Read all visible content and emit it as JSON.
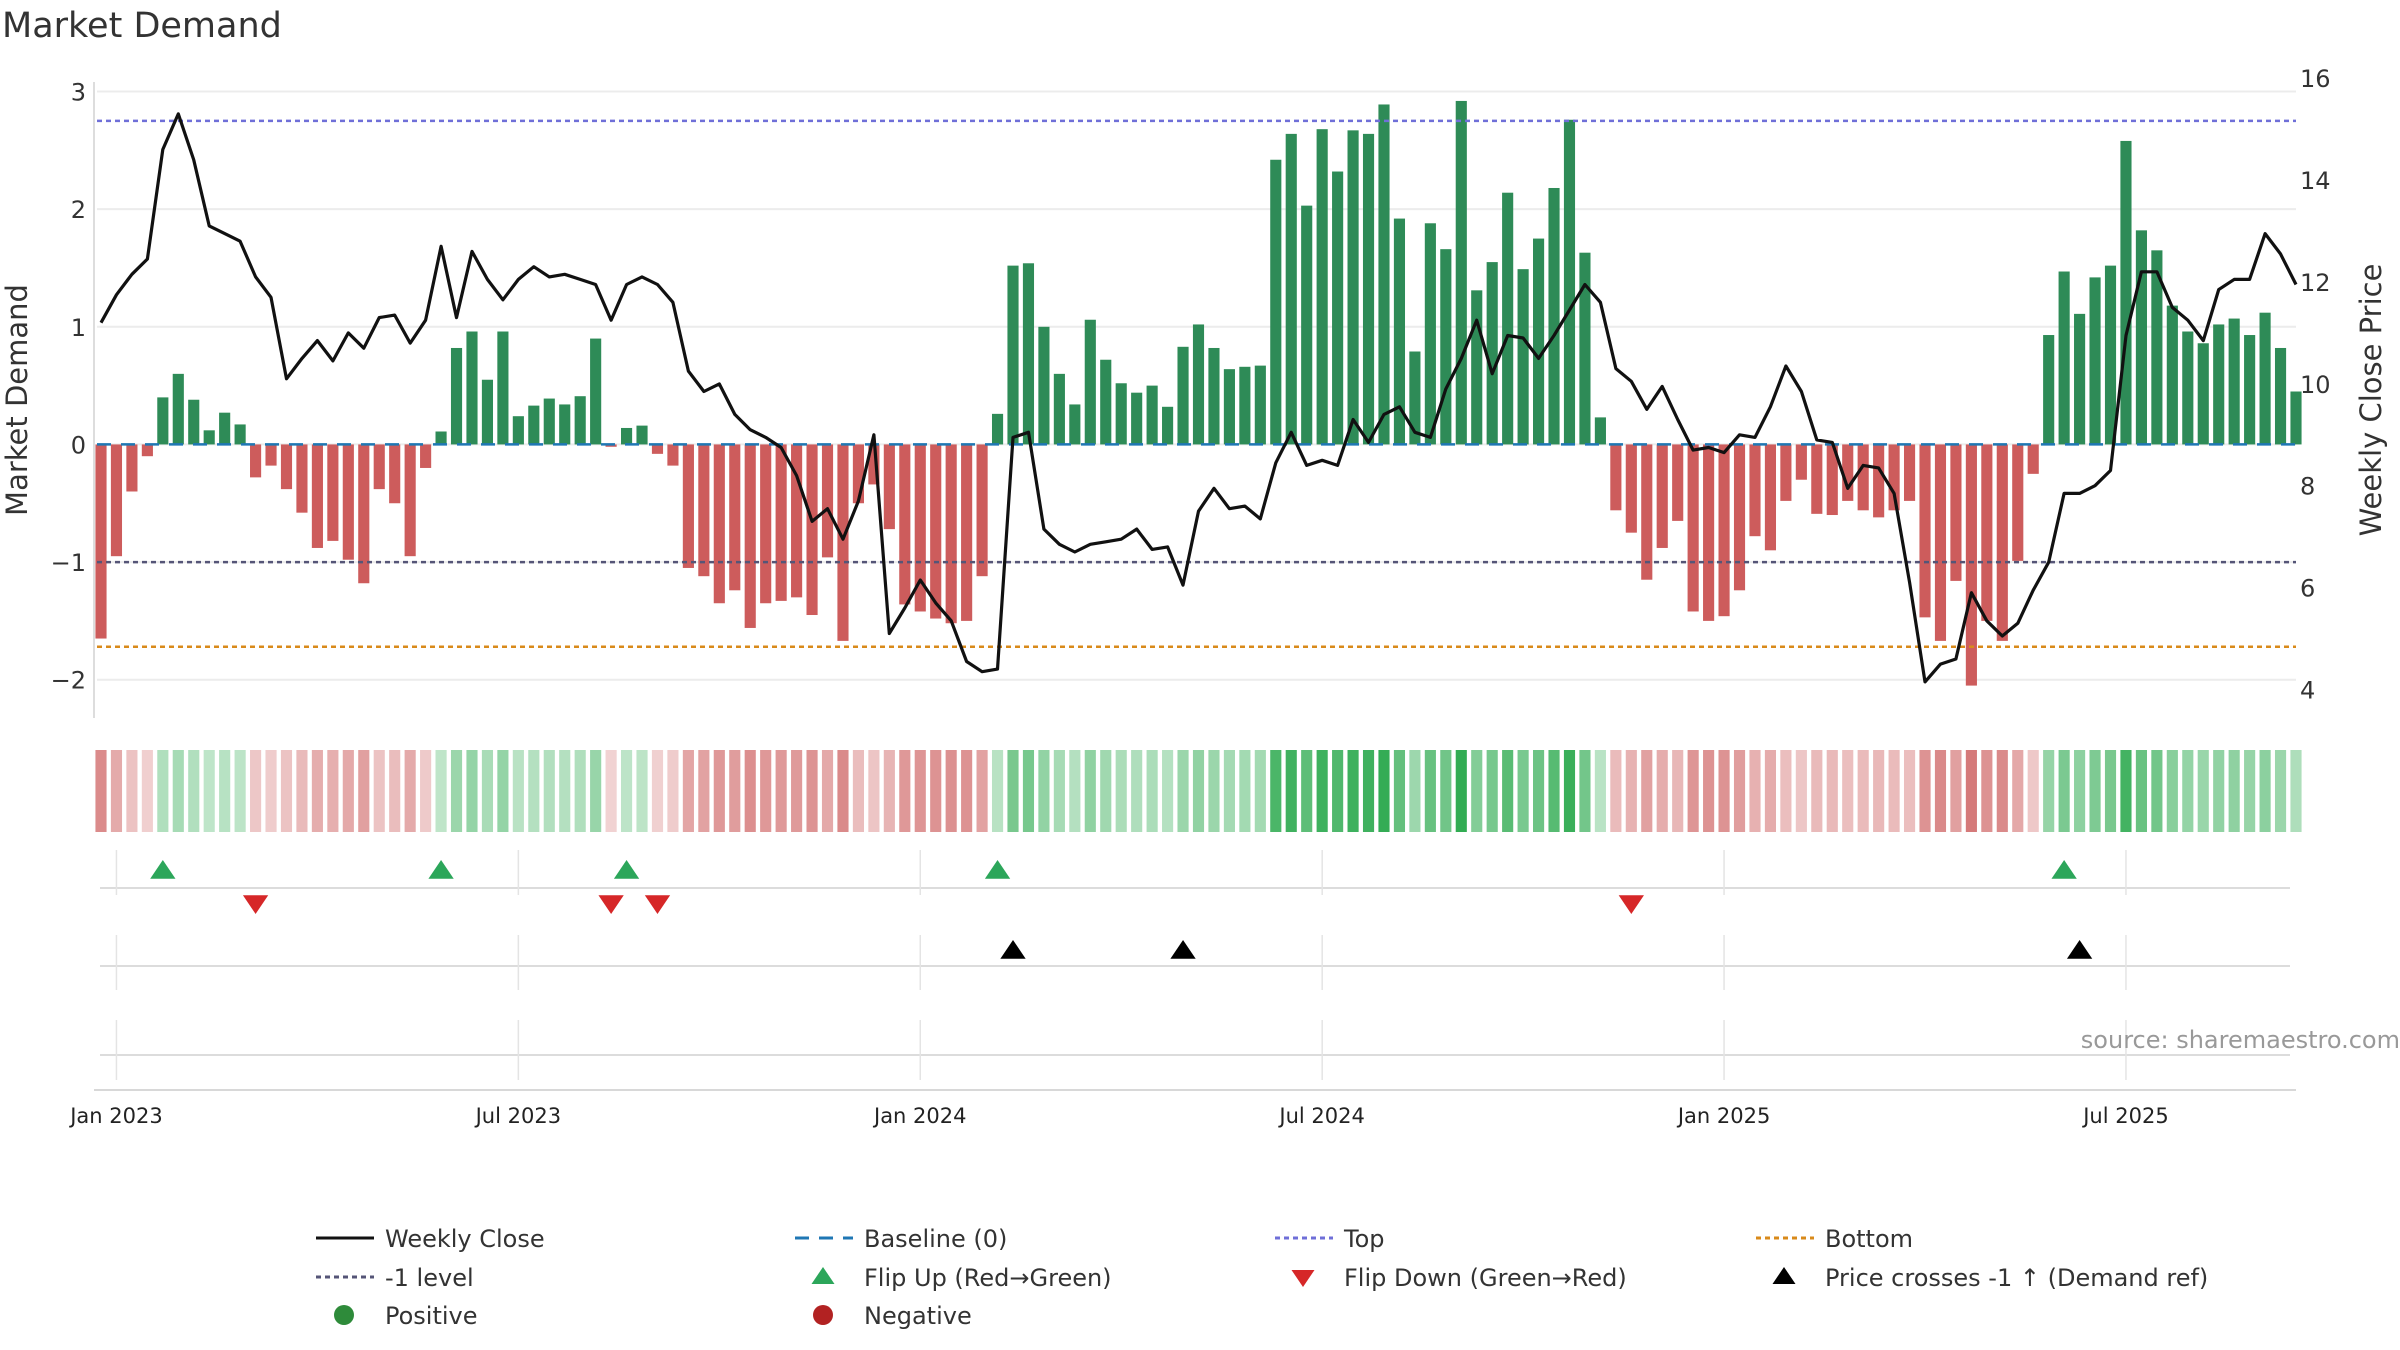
{
  "chart_data": {
    "type": "bar",
    "title": "Market Demand",
    "ylabel_left": "Market Demand",
    "ylabel_right": "Weekly Close Price",
    "ylim_left": [
      -2.3,
      3.2
    ],
    "ylim_right": [
      3.5,
      16.2
    ],
    "yticks_left": [
      -2,
      -1,
      0,
      1,
      2,
      3
    ],
    "yticks_right": [
      4,
      6,
      8,
      10,
      12,
      14,
      16
    ],
    "xticks": [
      {
        "label": "Jan 2023",
        "index": 1
      },
      {
        "label": "Jul 2023",
        "index": 27
      },
      {
        "label": "Jan 2024",
        "index": 53
      },
      {
        "label": "Jul 2024",
        "index": 79
      },
      {
        "label": "Jan 2025",
        "index": 105
      },
      {
        "label": "Jul 2025",
        "index": 131
      }
    ],
    "reference_lines": {
      "top": 2.75,
      "minus_one": -1,
      "bottom": -1.72,
      "baseline": 0
    },
    "demand": [
      -1.65,
      -0.95,
      -0.4,
      -0.1,
      0.4,
      0.6,
      0.38,
      0.12,
      0.27,
      0.17,
      -0.28,
      -0.18,
      -0.38,
      -0.58,
      -0.88,
      -0.82,
      -0.98,
      -1.18,
      -0.38,
      -0.5,
      -0.95,
      -0.2,
      0.11,
      0.82,
      0.96,
      0.55,
      0.96,
      0.24,
      0.33,
      0.39,
      0.34,
      0.41,
      0.9,
      -0.02,
      0.14,
      0.16,
      -0.08,
      -0.18,
      -1.05,
      -1.12,
      -1.35,
      -1.24,
      -1.56,
      -1.35,
      -1.33,
      -1.3,
      -1.45,
      -0.96,
      -1.67,
      -0.5,
      -0.34,
      -0.72,
      -1.36,
      -1.42,
      -1.48,
      -1.52,
      -1.5,
      -1.12,
      0.26,
      1.52,
      1.54,
      1.0,
      0.6,
      0.34,
      1.06,
      0.72,
      0.52,
      0.44,
      0.5,
      0.32,
      0.83,
      1.02,
      0.82,
      0.64,
      0.66,
      0.67,
      2.42,
      2.64,
      2.03,
      2.68,
      2.32,
      2.67,
      2.64,
      2.89,
      1.92,
      0.79,
      1.88,
      1.66,
      2.92,
      1.31,
      1.55,
      2.14,
      1.49,
      1.75,
      2.18,
      2.76,
      1.63,
      0.23,
      -0.56,
      -0.75,
      -1.15,
      -0.88,
      -0.65,
      -1.42,
      -1.5,
      -1.46,
      -1.24,
      -0.78,
      -0.9,
      -0.48,
      -0.3,
      -0.59,
      -0.6,
      -0.48,
      -0.56,
      -0.62,
      -0.56,
      -0.48,
      -1.47,
      -1.67,
      -1.16,
      -2.05,
      -1.5,
      -1.67,
      -0.99,
      -0.25,
      0.93,
      1.47,
      1.11,
      1.42,
      1.52,
      2.58,
      1.82,
      1.65,
      1.18,
      0.96,
      0.86,
      1.02,
      1.07,
      0.93,
      1.12,
      0.82,
      0.45
    ],
    "price": [
      11.2,
      11.75,
      12.15,
      12.45,
      14.6,
      15.3,
      14.4,
      13.1,
      12.95,
      12.8,
      12.1,
      11.7,
      10.1,
      10.5,
      10.85,
      10.45,
      11.0,
      10.7,
      11.3,
      11.35,
      10.8,
      11.25,
      12.7,
      11.3,
      12.6,
      12.05,
      11.65,
      12.05,
      12.3,
      12.1,
      12.15,
      12.05,
      11.95,
      11.25,
      11.95,
      12.1,
      11.95,
      11.6,
      10.25,
      9.85,
      10.0,
      9.4,
      9.1,
      8.95,
      8.75,
      8.2,
      7.3,
      7.55,
      6.95,
      7.7,
      9.0,
      5.1,
      5.6,
      6.15,
      5.7,
      5.35,
      4.55,
      4.35,
      4.4,
      8.95,
      9.05,
      7.15,
      6.85,
      6.7,
      6.85,
      6.9,
      6.95,
      7.15,
      6.75,
      6.8,
      6.05,
      7.5,
      7.95,
      7.55,
      7.6,
      7.35,
      8.45,
      9.05,
      8.4,
      8.5,
      8.4,
      9.3,
      8.85,
      9.4,
      9.55,
      9.05,
      8.95,
      9.9,
      10.5,
      11.25,
      10.2,
      10.95,
      10.9,
      10.5,
      10.95,
      11.45,
      11.95,
      11.6,
      10.3,
      10.05,
      9.5,
      9.95,
      9.3,
      8.7,
      8.75,
      8.65,
      9.0,
      8.95,
      9.55,
      10.35,
      9.85,
      8.9,
      8.85,
      7.95,
      8.4,
      8.35,
      7.85,
      6.1,
      4.15,
      4.5,
      4.6,
      5.9,
      5.35,
      5.05,
      5.3,
      5.95,
      6.5,
      7.85,
      7.85,
      8.0,
      8.3,
      10.95,
      12.2,
      12.2,
      11.5,
      11.25,
      10.85,
      11.85,
      12.05,
      12.05,
      12.95,
      12.55,
      11.95
    ],
    "flip_up": [
      4,
      22,
      34,
      58,
      127
    ],
    "flip_down": [
      10,
      33,
      36,
      99
    ],
    "price_cross": [
      59,
      70,
      128
    ],
    "legend": [
      {
        "label": "Weekly Close",
        "kind": "solid",
        "color": "#111111"
      },
      {
        "label": "Baseline (0)",
        "kind": "dashed",
        "color": "#1f77b4"
      },
      {
        "label": "Top",
        "kind": "dotted",
        "color": "#6f6fd8"
      },
      {
        "label": "Bottom",
        "kind": "dotted",
        "color": "#d98a1a"
      },
      {
        "label": "-1 level",
        "kind": "dotted",
        "color": "#555577"
      },
      {
        "label": "Flip Up (Red→Green)",
        "kind": "tri-up",
        "color": "#2ca65a"
      },
      {
        "label": "Flip Down (Green→Red)",
        "kind": "tri-down",
        "color": "#d62728"
      },
      {
        "label": "Price crosses -1 ↑ (Demand ref)",
        "kind": "tri-up",
        "color": "#000000"
      },
      {
        "label": "Positive",
        "kind": "circle",
        "color": "#2e8b3a"
      },
      {
        "label": "Negative",
        "kind": "circle",
        "color": "#b22222"
      }
    ],
    "colors": {
      "positive_bar": "#2e8b57",
      "negative_bar": "#cd5c5c",
      "price_line": "#111111"
    },
    "annotation": "source: sharemaestro.com"
  }
}
